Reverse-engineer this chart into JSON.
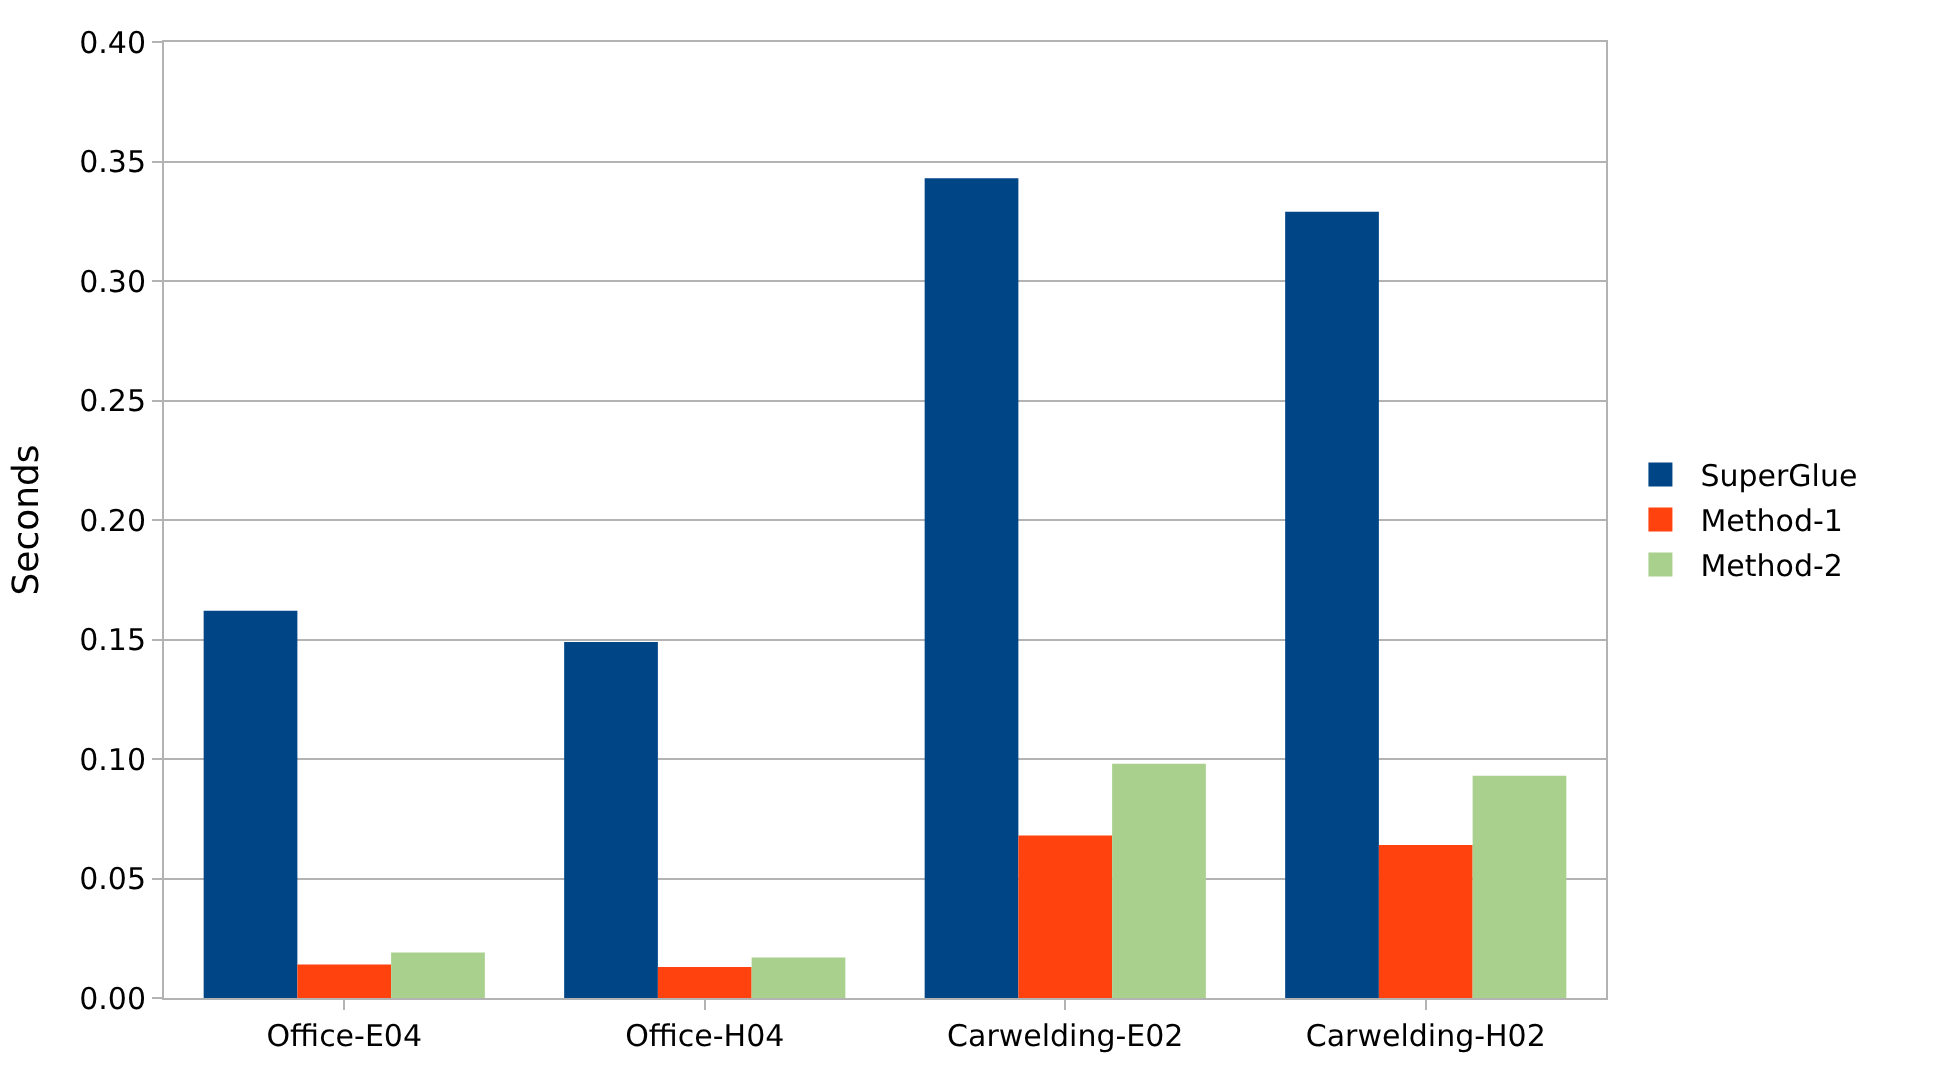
{
  "chart_data": {
    "type": "bar",
    "ylabel": "Seconds",
    "categories": [
      "Office-E04",
      "Office-H04",
      "Carwelding-E02",
      "Carwelding-H02"
    ],
    "series": [
      {
        "name": "SuperGlue",
        "color": "#004586",
        "values": [
          0.162,
          0.149,
          0.343,
          0.329
        ]
      },
      {
        "name": "Method-1",
        "color": "#ff420e",
        "values": [
          0.014,
          0.013,
          0.068,
          0.064
        ]
      },
      {
        "name": "Method-2",
        "color": "#aad08e",
        "values": [
          0.019,
          0.017,
          0.098,
          0.093
        ]
      }
    ],
    "ylim": [
      0,
      0.4
    ],
    "yticks": [
      {
        "value": 0,
        "label": "0.00"
      },
      {
        "value": 0.05,
        "label": "0.05"
      },
      {
        "value": 0.1,
        "label": "0.10"
      },
      {
        "value": 0.15,
        "label": "0.15"
      },
      {
        "value": 0.2,
        "label": "0.20"
      },
      {
        "value": 0.25,
        "label": "0.25"
      },
      {
        "value": 0.3,
        "label": "0.30"
      },
      {
        "value": 0.35,
        "label": "0.35"
      },
      {
        "value": 0.4,
        "label": "0.40"
      }
    ],
    "grid": "y",
    "legend": "right"
  }
}
